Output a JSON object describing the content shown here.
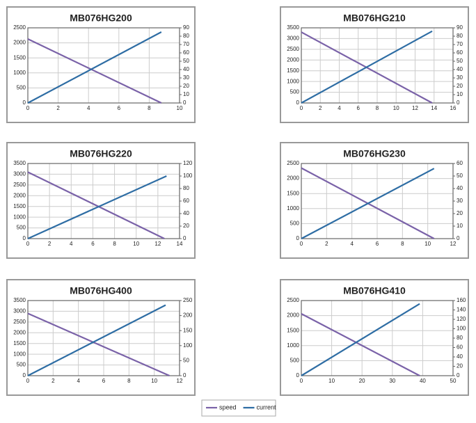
{
  "chart_data": [
    {
      "type": "line",
      "title": "MB076HG200",
      "xlim": [
        0,
        10
      ],
      "xticks": [
        0,
        2,
        4,
        6,
        8,
        10
      ],
      "ylim": [
        0,
        2500
      ],
      "yticks": [
        0,
        500,
        1000,
        1500,
        2000,
        2500
      ],
      "y2lim": [
        0,
        90
      ],
      "y2ticks": [
        0,
        10,
        20,
        30,
        40,
        50,
        60,
        70,
        80,
        90
      ],
      "grid": true,
      "series": [
        {
          "color": "#7a62a8",
          "x": [
            0,
            8.8
          ],
          "values": [
            2130,
            0
          ]
        },
        {
          "color": "#2e6da4",
          "axis": "y2",
          "x": [
            0,
            8.8
          ],
          "values": [
            0,
            85
          ]
        }
      ]
    },
    {
      "type": "line",
      "title": "MB076HG210",
      "xlim": [
        0,
        16
      ],
      "xticks": [
        0,
        2,
        4,
        6,
        8,
        10,
        12,
        14,
        16
      ],
      "ylim": [
        0,
        3500
      ],
      "yticks": [
        0,
        500,
        1000,
        1500,
        2000,
        2500,
        3000,
        3500
      ],
      "y2lim": [
        0,
        90
      ],
      "y2ticks": [
        0,
        10,
        20,
        30,
        40,
        50,
        60,
        70,
        80,
        90
      ],
      "grid": true,
      "series": [
        {
          "color": "#7a62a8",
          "x": [
            0,
            13.8
          ],
          "values": [
            3300,
            0
          ]
        },
        {
          "color": "#2e6da4",
          "axis": "y2",
          "x": [
            0,
            13.8
          ],
          "values": [
            0,
            86
          ]
        }
      ]
    },
    {
      "type": "line",
      "title": "MB076HG220",
      "xlim": [
        0,
        14
      ],
      "xticks": [
        0,
        2,
        4,
        6,
        8,
        10,
        12,
        14
      ],
      "ylim": [
        0,
        3500
      ],
      "yticks": [
        0,
        500,
        1000,
        1500,
        2000,
        2500,
        3000,
        3500
      ],
      "y2lim": [
        0,
        120
      ],
      "y2ticks": [
        0,
        20,
        40,
        60,
        80,
        100,
        120
      ],
      "grid": true,
      "series": [
        {
          "color": "#7a62a8",
          "x": [
            0,
            12.6
          ],
          "values": [
            3100,
            0
          ]
        },
        {
          "color": "#2e6da4",
          "axis": "y2",
          "x": [
            0,
            12.8
          ],
          "values": [
            0,
            100
          ]
        }
      ]
    },
    {
      "type": "line",
      "title": "MB076HG230",
      "xlim": [
        0,
        12
      ],
      "xticks": [
        0,
        2,
        4,
        6,
        8,
        10,
        12
      ],
      "ylim": [
        0,
        2500
      ],
      "yticks": [
        0,
        500,
        1000,
        1500,
        2000,
        2500
      ],
      "y2lim": [
        0,
        60
      ],
      "y2ticks": [
        0,
        10,
        20,
        30,
        40,
        50,
        60
      ],
      "grid": true,
      "series": [
        {
          "color": "#7a62a8",
          "x": [
            0,
            10.5
          ],
          "values": [
            2350,
            0
          ]
        },
        {
          "color": "#2e6da4",
          "axis": "y2",
          "x": [
            0,
            10.5
          ],
          "values": [
            0,
            56
          ]
        }
      ]
    },
    {
      "type": "line",
      "title": "MB076HG400",
      "xlim": [
        0,
        12
      ],
      "xticks": [
        0,
        2,
        4,
        6,
        8,
        10,
        12
      ],
      "ylim": [
        0,
        3500
      ],
      "yticks": [
        0,
        500,
        1000,
        1500,
        2000,
        2500,
        3000,
        3500
      ],
      "y2lim": [
        0,
        250
      ],
      "y2ticks": [
        0,
        50,
        100,
        150,
        200,
        250
      ],
      "grid": true,
      "series": [
        {
          "color": "#7a62a8",
          "x": [
            0,
            11.2
          ],
          "values": [
            2900,
            0
          ]
        },
        {
          "color": "#2e6da4",
          "axis": "y2",
          "x": [
            0,
            10.9
          ],
          "values": [
            0,
            235
          ]
        }
      ]
    },
    {
      "type": "line",
      "title": "MB076HG410",
      "xlim": [
        0,
        50
      ],
      "xticks": [
        0,
        10,
        20,
        30,
        40,
        50
      ],
      "ylim": [
        0,
        2500
      ],
      "yticks": [
        0,
        500,
        1000,
        1500,
        2000,
        2500
      ],
      "y2lim": [
        0,
        160
      ],
      "y2ticks": [
        0,
        20,
        40,
        60,
        80,
        100,
        120,
        140,
        160
      ],
      "grid": true,
      "series": [
        {
          "color": "#7a62a8",
          "x": [
            0,
            39
          ],
          "values": [
            2060,
            0
          ]
        },
        {
          "color": "#2e6da4",
          "axis": "y2",
          "x": [
            0,
            39
          ],
          "values": [
            0,
            153
          ]
        }
      ]
    }
  ],
  "legend": [
    {
      "name": "speed",
      "color": "#7a62a8"
    },
    {
      "name": "current",
      "color": "#2e6da4"
    }
  ]
}
